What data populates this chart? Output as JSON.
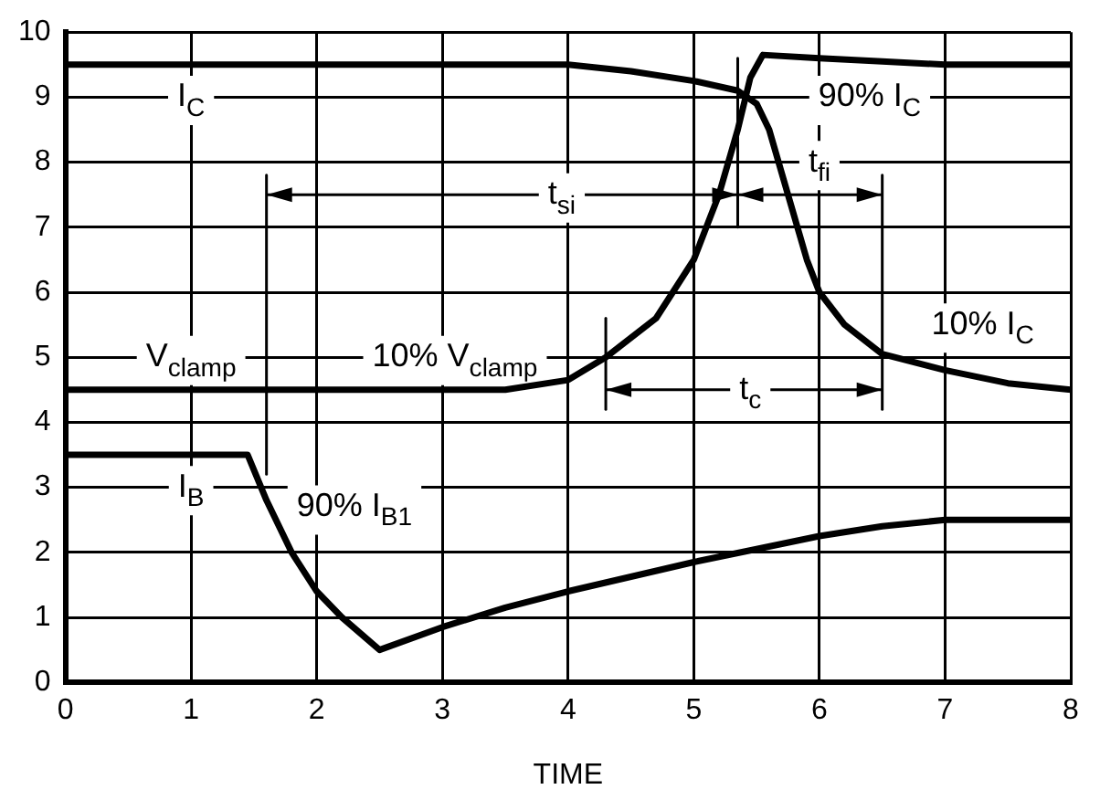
{
  "chart_data": {
    "type": "line",
    "xlabel": "TIME",
    "xlim": [
      0,
      8
    ],
    "xticks": [
      0,
      1,
      2,
      3,
      4,
      5,
      6,
      7,
      8
    ],
    "ylim": [
      0,
      10
    ],
    "yticks": [
      0,
      1,
      2,
      3,
      4,
      5,
      6,
      7,
      8,
      9,
      10
    ],
    "grid": true,
    "legend": false,
    "series": [
      {
        "name": "I$_{C}$",
        "color": "#000000",
        "x": [
          0,
          1,
          2,
          3,
          4,
          4.5,
          5,
          5.35,
          5.5,
          5.6,
          5.75,
          5.9,
          6,
          6.2,
          6.5,
          7,
          7.5,
          8
        ],
        "values": [
          9.5,
          9.5,
          9.5,
          9.5,
          9.5,
          9.4,
          9.25,
          9.1,
          8.9,
          8.5,
          7.5,
          6.5,
          6,
          5.5,
          5.05,
          4.8,
          4.6,
          4.5
        ]
      },
      {
        "name": "V$_{clamp}$",
        "color": "#000000",
        "x": [
          0,
          1,
          2,
          3,
          3.5,
          4,
          4.3,
          4.7,
          5,
          5.2,
          5.35,
          5.45,
          5.55,
          6,
          6.5,
          7,
          8
        ],
        "values": [
          4.5,
          4.5,
          4.5,
          4.5,
          4.5,
          4.65,
          5,
          5.6,
          6.5,
          7.5,
          8.5,
          9.3,
          9.65,
          9.6,
          9.55,
          9.5,
          9.5
        ]
      },
      {
        "name": "I$_{B}$",
        "color": "#000000",
        "x": [
          0,
          1,
          1.45,
          1.6,
          1.8,
          2,
          2.2,
          2.5,
          3,
          3.5,
          4,
          5,
          5.5,
          6,
          6.5,
          7,
          8
        ],
        "values": [
          3.5,
          3.5,
          3.5,
          2.8,
          2,
          1.4,
          1,
          0.5,
          0.85,
          1.15,
          1.4,
          1.85,
          2.05,
          2.25,
          2.4,
          2.5,
          2.5
        ]
      },
      {
        "type": "line",
        "color": "#000000",
        "x": [
          1.6,
          1.6
        ],
        "values": [
          3.2,
          7.8
        ]
      },
      {
        "type": "line",
        "color": "#000000",
        "x": [
          5.35,
          5.35
        ],
        "values": [
          7,
          9.6
        ]
      },
      {
        "type": "line",
        "color": "#000000",
        "x": [
          6.5,
          6.5
        ],
        "values": [
          4.2,
          7.8
        ]
      },
      {
        "type": "line",
        "color": "#000000",
        "x": [
          4.3,
          4.3
        ],
        "values": [
          4.2,
          5.6
        ]
      }
    ],
    "annotations": [
      "90% I$_{C}$",
      "10% I$_{C}$",
      "10% V$_{clamp}$",
      "90% I$_{B1}$",
      {
        "text": "t$_{si}$",
        "x": 3.95,
        "y": 7.5
      },
      {
        "text": "t$_{fi}$",
        "x": 6.0,
        "y": 8
      },
      {
        "text": "t$_{c}$",
        "x": 5.45,
        "y": 4.5
      }
    ]
  }
}
